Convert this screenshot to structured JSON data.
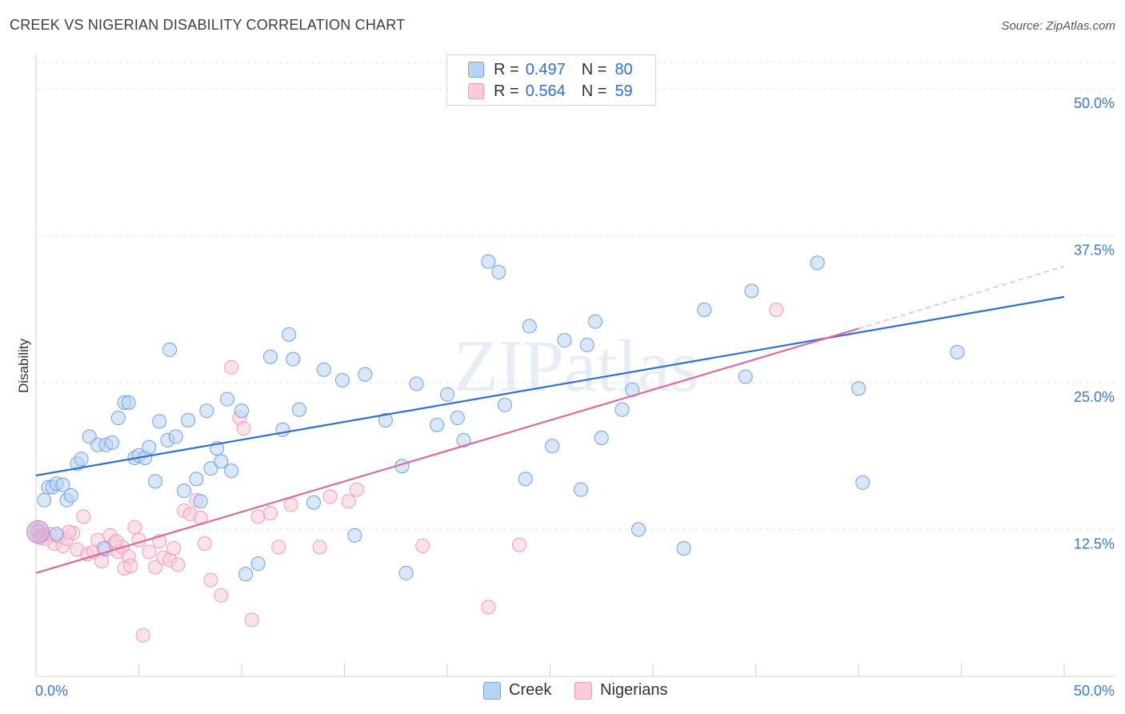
{
  "title": "CREEK VS NIGERIAN DISABILITY CORRELATION CHART",
  "source": "Source: ZipAtlas.com",
  "watermark": "ZIPatlas",
  "legend": {
    "creek": {
      "r_label": "R =",
      "r_value": "0.497",
      "n_label": "N =",
      "n_value": "80"
    },
    "nigerians": {
      "r_label": "R =",
      "r_value": "0.564",
      "n_label": "N =",
      "n_value": "59"
    }
  },
  "bottom_legend": {
    "creek": "Creek",
    "nigerians": "Nigerians"
  },
  "colors": {
    "creek_fill": "#b9d3f5",
    "creek_stroke": "#6fa0e0",
    "creek_line": "#2f6fd6",
    "nigerians_fill": "#fbcbdc",
    "nigerians_stroke": "#ee9ab9",
    "nigerians_line": "#e06a97",
    "grid": "#e3e3e3",
    "tick_label": "#3a78d4"
  },
  "chart_data": {
    "type": "scatter",
    "title": "CREEK VS NIGERIAN DISABILITY CORRELATION CHART",
    "xlabel": "",
    "ylabel": "Disability",
    "xlim": [
      0,
      50
    ],
    "ylim": [
      0,
      53
    ],
    "x_tick_labels": [
      {
        "value": 0,
        "label": "0.0%"
      },
      {
        "value": 50,
        "label": "50.0%"
      }
    ],
    "y_tick_labels": [
      {
        "value": 12.5,
        "label": "12.5%"
      },
      {
        "value": 25,
        "label": "25.0%"
      },
      {
        "value": 37.5,
        "label": "37.5%"
      },
      {
        "value": 50,
        "label": "50.0%"
      }
    ],
    "grid": "horizontal dashed",
    "legend_position": "top-center",
    "series": [
      {
        "name": "Creek",
        "r": 0.497,
        "n": 80,
        "trend": [
          [
            0,
            17.1
          ],
          [
            50,
            32.3
          ]
        ],
        "points": [
          [
            0.4,
            15.0
          ],
          [
            0.6,
            16.1
          ],
          [
            0.8,
            16.1
          ],
          [
            1.0,
            16.4
          ],
          [
            1.3,
            16.3
          ],
          [
            1.5,
            15.0
          ],
          [
            1.7,
            15.4
          ],
          [
            2.0,
            18.1
          ],
          [
            2.2,
            18.5
          ],
          [
            2.6,
            20.4
          ],
          [
            3.0,
            19.7
          ],
          [
            3.4,
            19.7
          ],
          [
            3.7,
            19.9
          ],
          [
            4.0,
            22.0
          ],
          [
            4.3,
            23.3
          ],
          [
            4.5,
            23.3
          ],
          [
            4.8,
            18.6
          ],
          [
            5.0,
            18.8
          ],
          [
            5.3,
            18.6
          ],
          [
            5.5,
            19.5
          ],
          [
            5.8,
            16.6
          ],
          [
            6.0,
            21.7
          ],
          [
            6.4,
            20.1
          ],
          [
            6.5,
            27.8
          ],
          [
            6.8,
            20.4
          ],
          [
            7.2,
            15.8
          ],
          [
            7.4,
            21.8
          ],
          [
            7.8,
            16.8
          ],
          [
            8.0,
            14.9
          ],
          [
            8.3,
            22.6
          ],
          [
            8.5,
            17.7
          ],
          [
            8.8,
            19.4
          ],
          [
            9.0,
            18.3
          ],
          [
            9.3,
            23.6
          ],
          [
            9.5,
            17.5
          ],
          [
            10.0,
            22.6
          ],
          [
            10.2,
            8.7
          ],
          [
            10.8,
            9.6
          ],
          [
            11.4,
            27.2
          ],
          [
            12.0,
            21.0
          ],
          [
            12.3,
            29.1
          ],
          [
            12.5,
            27.0
          ],
          [
            12.8,
            22.7
          ],
          [
            13.5,
            14.8
          ],
          [
            14.0,
            26.1
          ],
          [
            14.9,
            25.2
          ],
          [
            15.5,
            12.0
          ],
          [
            16.0,
            25.7
          ],
          [
            17.0,
            21.8
          ],
          [
            17.8,
            17.9
          ],
          [
            18.0,
            8.8
          ],
          [
            18.5,
            24.9
          ],
          [
            19.5,
            21.4
          ],
          [
            20.0,
            24.0
          ],
          [
            20.5,
            22.0
          ],
          [
            20.8,
            20.1
          ],
          [
            22.0,
            35.3
          ],
          [
            22.5,
            34.4
          ],
          [
            22.8,
            23.1
          ],
          [
            23.8,
            16.8
          ],
          [
            24.0,
            29.8
          ],
          [
            25.1,
            19.6
          ],
          [
            25.7,
            28.6
          ],
          [
            26.5,
            15.9
          ],
          [
            26.8,
            28.2
          ],
          [
            27.2,
            30.2
          ],
          [
            27.5,
            20.3
          ],
          [
            28.5,
            22.7
          ],
          [
            29.0,
            24.4
          ],
          [
            29.3,
            12.5
          ],
          [
            31.5,
            10.9
          ],
          [
            32.5,
            31.2
          ],
          [
            34.5,
            25.5
          ],
          [
            34.8,
            32.8
          ],
          [
            38.0,
            35.2
          ],
          [
            40.0,
            24.5
          ],
          [
            40.2,
            16.5
          ],
          [
            44.8,
            27.6
          ],
          [
            3.3,
            10.9
          ],
          [
            1.0,
            12.1
          ]
        ]
      },
      {
        "name": "Nigerians",
        "r": 0.564,
        "n": 59,
        "trend": [
          [
            0,
            8.8
          ],
          [
            40,
            29.6
          ]
        ],
        "trend_dashed_extension": [
          [
            40,
            29.6
          ],
          [
            50,
            34.9
          ]
        ],
        "points": [
          [
            0.1,
            12.4
          ],
          [
            0.3,
            12.0
          ],
          [
            0.5,
            11.7
          ],
          [
            0.7,
            12.1
          ],
          [
            0.9,
            11.3
          ],
          [
            1.1,
            11.9
          ],
          [
            1.3,
            11.1
          ],
          [
            1.5,
            11.7
          ],
          [
            1.8,
            12.2
          ],
          [
            2.0,
            10.8
          ],
          [
            2.3,
            13.6
          ],
          [
            2.5,
            10.4
          ],
          [
            2.8,
            10.6
          ],
          [
            3.0,
            11.6
          ],
          [
            3.2,
            9.8
          ],
          [
            3.4,
            10.8
          ],
          [
            3.6,
            12.0
          ],
          [
            3.8,
            11.3
          ],
          [
            4.0,
            10.6
          ],
          [
            4.2,
            11.0
          ],
          [
            4.3,
            9.2
          ],
          [
            4.5,
            10.2
          ],
          [
            4.6,
            9.4
          ],
          [
            4.8,
            12.7
          ],
          [
            5.0,
            11.6
          ],
          [
            5.2,
            3.5
          ],
          [
            5.5,
            10.6
          ],
          [
            5.8,
            9.3
          ],
          [
            6.0,
            11.5
          ],
          [
            6.2,
            10.1
          ],
          [
            6.5,
            9.9
          ],
          [
            6.7,
            10.9
          ],
          [
            6.9,
            9.5
          ],
          [
            7.2,
            14.1
          ],
          [
            7.5,
            13.8
          ],
          [
            7.8,
            15.0
          ],
          [
            8.0,
            13.5
          ],
          [
            8.2,
            11.3
          ],
          [
            8.5,
            8.2
          ],
          [
            9.0,
            6.9
          ],
          [
            9.5,
            26.3
          ],
          [
            9.9,
            22.0
          ],
          [
            10.1,
            21.1
          ],
          [
            10.5,
            4.8
          ],
          [
            10.8,
            13.6
          ],
          [
            11.4,
            13.9
          ],
          [
            11.8,
            11.0
          ],
          [
            12.4,
            14.6
          ],
          [
            13.8,
            11.0
          ],
          [
            14.3,
            15.3
          ],
          [
            15.2,
            14.9
          ],
          [
            15.6,
            15.9
          ],
          [
            18.8,
            11.1
          ],
          [
            22.0,
            5.9
          ],
          [
            23.5,
            11.2
          ],
          [
            0.2,
            11.8
          ],
          [
            1.6,
            12.3
          ],
          [
            3.9,
            11.5
          ],
          [
            36.0,
            31.2
          ]
        ]
      }
    ]
  }
}
